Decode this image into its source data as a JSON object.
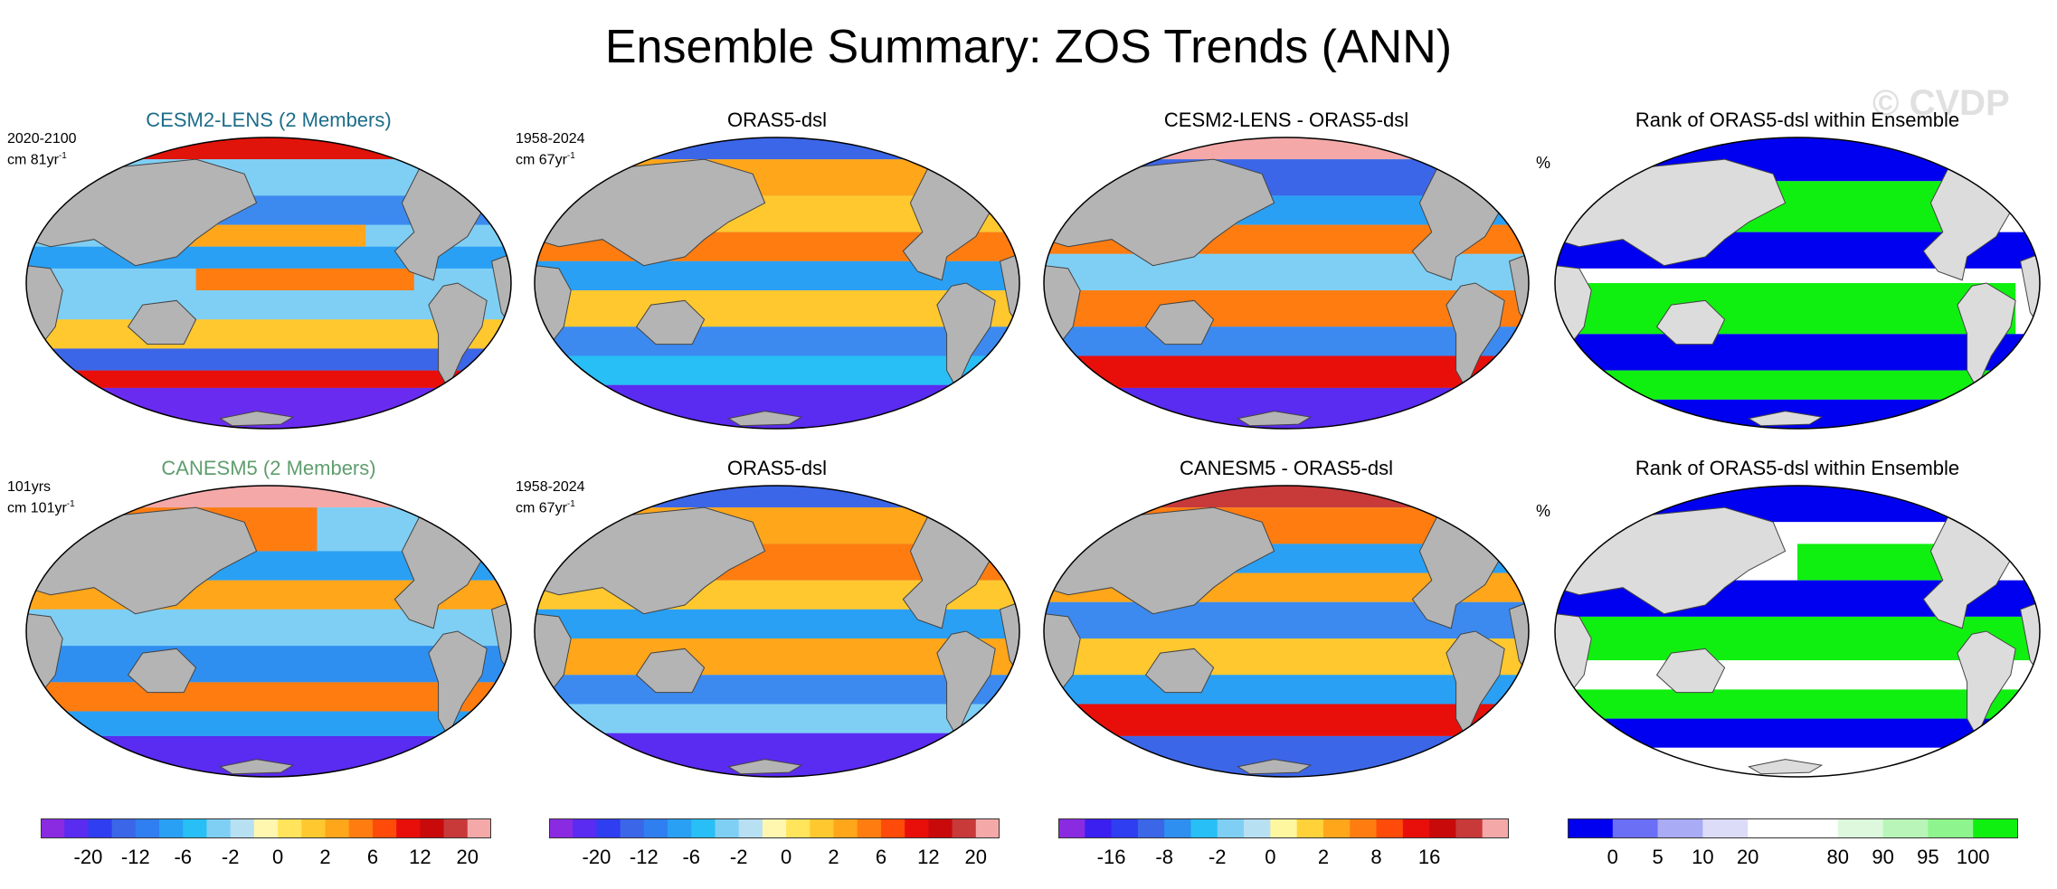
{
  "figure": {
    "title": "Ensemble Summary: ZOS Trends (ANN)",
    "watermark": "© CVDP"
  },
  "rows": [
    {
      "panels": [
        {
          "title": "CESM2-LENS (2 Members)",
          "title_color": "#1d6d8a",
          "info_line1": "2020-2100",
          "info_line2": "cm 81yr",
          "info_sup": "-1",
          "style": "model_a"
        },
        {
          "title": "ORAS5-dsl",
          "info_line1": "1958-2024",
          "info_line2": "cm 67yr",
          "info_sup": "-1",
          "style": "obs"
        },
        {
          "title": "CESM2-LENS - ORAS5-dsl",
          "style": "diff_a"
        },
        {
          "title": "Rank of ORAS5-dsl within Ensemble",
          "pct": "%",
          "style": "rank_a"
        }
      ]
    },
    {
      "panels": [
        {
          "title": "CANESM5 (2 Members)",
          "title_color": "#5f9e6e",
          "info_line1": "101yrs",
          "info_line2": "cm 101yr",
          "info_sup": "-1",
          "style": "model_b"
        },
        {
          "title": "ORAS5-dsl",
          "info_line1": "1958-2024",
          "info_line2": "cm 67yr",
          "info_sup": "-1",
          "style": "obs2"
        },
        {
          "title": "CANESM5 - ORAS5-dsl",
          "style": "diff_b"
        },
        {
          "title": "Rank of ORAS5-dsl within Ensemble",
          "pct": "%",
          "style": "rank_b"
        }
      ]
    }
  ],
  "colorbars": [
    {
      "colors": [
        "#8a2be2",
        "#5a2bf0",
        "#2f3ef0",
        "#3c66e8",
        "#2f7ff0",
        "#2aa0f5",
        "#27bff5",
        "#7fcff5",
        "#b7e0f2",
        "#fff7b0",
        "#ffe45c",
        "#ffc82e",
        "#ffa61a",
        "#ff7d10",
        "#ff4b0a",
        "#e80f0a",
        "#c80a0a",
        "#c83a3a",
        "#f5a8a8"
      ],
      "labels": [
        "-20",
        "-12",
        "-6",
        "-2",
        "0",
        "2",
        "6",
        "12",
        "20"
      ],
      "label_positions": [
        2,
        4,
        6,
        8,
        10,
        12,
        14,
        16,
        18
      ]
    },
    {
      "colors": [
        "#8a2be2",
        "#5a2bf0",
        "#2f3ef0",
        "#3c66e8",
        "#2f7ff0",
        "#2aa0f5",
        "#27bff5",
        "#7fcff5",
        "#b7e0f2",
        "#fff7b0",
        "#ffe45c",
        "#ffc82e",
        "#ffa61a",
        "#ff7d10",
        "#ff4b0a",
        "#e80f0a",
        "#c80a0a",
        "#c83a3a",
        "#f5a8a8"
      ],
      "labels": [
        "-20",
        "-12",
        "-6",
        "-2",
        "0",
        "2",
        "6",
        "12",
        "20"
      ],
      "label_positions": [
        2,
        4,
        6,
        8,
        10,
        12,
        14,
        16,
        18
      ]
    },
    {
      "colors": [
        "#8a2be2",
        "#3a1ff0",
        "#2f3ef0",
        "#3c66e8",
        "#2f8ff0",
        "#27bff5",
        "#7fcff5",
        "#b7e0f2",
        "#fff7a0",
        "#ffd23a",
        "#ffa61a",
        "#ff7d10",
        "#ff4b0a",
        "#e80f0a",
        "#c80a0a",
        "#c83a3a",
        "#f5a8a8"
      ],
      "labels": [
        "-16",
        "-8",
        "-2",
        "0",
        "2",
        "8",
        "16"
      ],
      "label_positions": [
        2,
        4,
        6,
        8,
        10,
        12,
        14
      ]
    },
    {
      "colors": [
        "#0000f0",
        "#6a6ff5",
        "#a9abf5",
        "#dcdcf8",
        "#ffffff",
        "#ffffff",
        "#ddf8dd",
        "#b9f5b9",
        "#8ef58e",
        "#10f010"
      ],
      "labels": [
        "0",
        "5",
        "10",
        "20",
        "80",
        "90",
        "95",
        "100"
      ],
      "label_positions": [
        1,
        2,
        3,
        4,
        6,
        7,
        8,
        9
      ]
    }
  ]
}
